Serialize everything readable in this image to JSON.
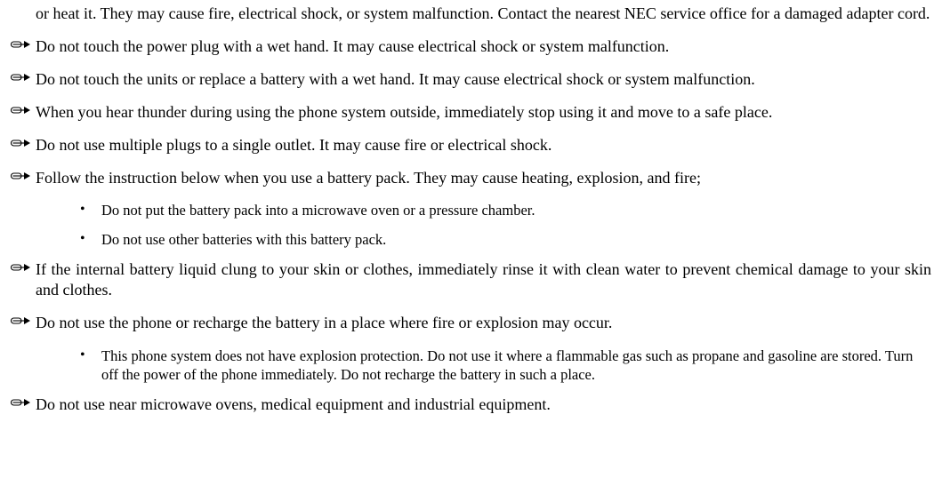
{
  "items": [
    {
      "text": "or heat it. They may cause fire, electrical shock, or system malfunction. Contact the nearest NEC service office for a damaged adapter cord.",
      "continuation": true
    },
    {
      "text": "Do not touch the power plug with a wet hand. It may cause electrical shock or system malfunction."
    },
    {
      "text": "Do not touch the units or replace a battery with a wet hand. It may cause electrical shock or system malfunction."
    },
    {
      "text": "When you hear thunder during using the phone system outside, immediately stop using it and move to a safe place."
    },
    {
      "text": "Do not use multiple plugs to a single outlet. It may cause fire or electrical shock."
    },
    {
      "text": "Follow the instruction below when you use a battery pack. They may cause heating, explosion, and fire;",
      "sub": [
        "Do not put the battery pack into a microwave oven or a pressure chamber.",
        "Do not use other batteries with this battery pack."
      ]
    },
    {
      "text": "If the internal battery liquid clung to your skin or clothes, immediately rinse it with clean water to prevent chemical damage to your skin and clothes."
    },
    {
      "text": "Do not use the phone or recharge the battery in a place where fire or explosion may occur.",
      "sub": [
        "This phone system does not have explosion protection. Do not use it where a flammable gas such as propane and gasoline are stored. Turn off the power of the phone immediately. Do not recharge the battery in such a place."
      ]
    },
    {
      "text": "Do not use near microwave ovens, medical equipment and industrial equipment."
    }
  ],
  "icon": {
    "stroke": "#000000",
    "fill": "#000000"
  }
}
